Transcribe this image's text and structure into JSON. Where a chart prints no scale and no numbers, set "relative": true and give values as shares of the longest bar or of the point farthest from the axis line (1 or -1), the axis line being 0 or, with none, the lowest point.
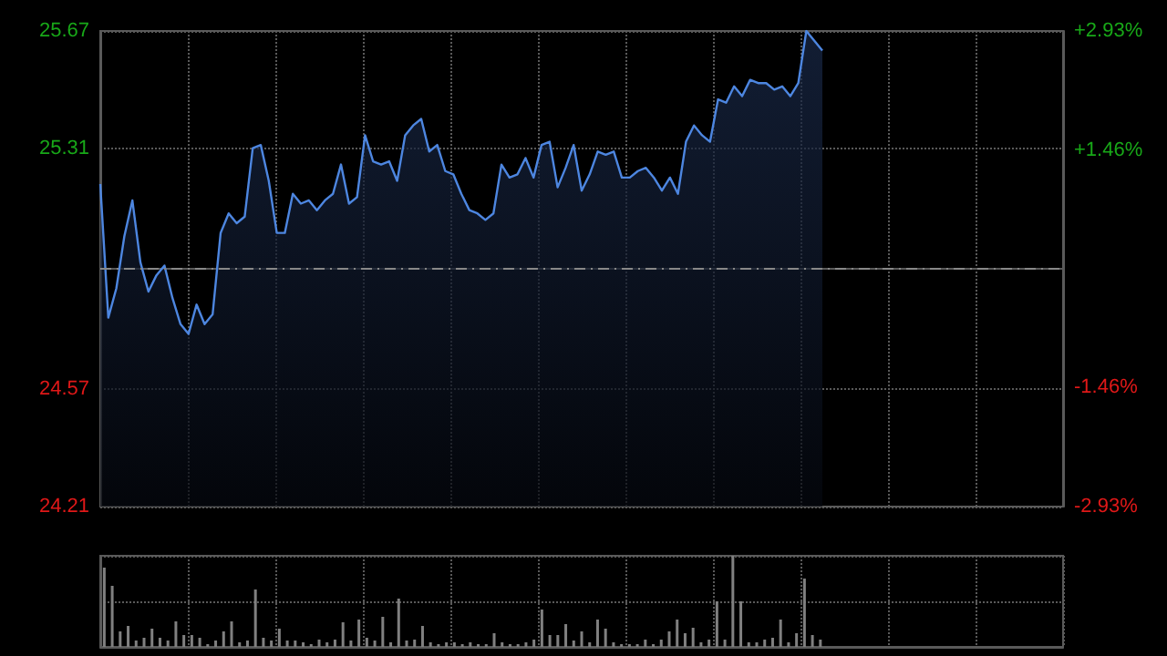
{
  "chart_data": [
    {
      "type": "area",
      "categories": [
        null,
        null,
        null,
        null,
        null,
        null,
        null,
        null,
        null,
        null,
        null,
        null,
        null,
        null,
        null,
        null,
        null,
        null,
        null,
        null,
        null,
        null,
        null,
        null,
        null,
        null,
        null,
        null,
        null,
        null,
        null,
        null,
        null,
        null,
        null,
        null,
        null,
        null,
        null,
        null,
        null,
        null,
        null,
        null,
        null,
        null,
        null,
        null,
        null,
        null,
        null,
        null,
        null,
        null,
        null,
        null,
        null,
        null,
        null,
        null,
        null,
        null,
        null,
        null,
        null,
        null,
        null,
        null,
        null,
        null,
        null,
        null,
        null,
        null,
        null,
        null,
        null,
        null,
        null,
        null,
        null,
        null,
        null,
        null,
        null,
        null,
        null,
        null,
        null,
        null,
        null
      ],
      "series": [
        {
          "color": "#4d86e0",
          "values": [
            25.2,
            24.79,
            24.88,
            25.04,
            25.15,
            24.96,
            24.87,
            24.92,
            24.95,
            24.85,
            24.77,
            24.74,
            24.83,
            24.77,
            24.8,
            25.05,
            25.11,
            25.08,
            25.1,
            25.31,
            25.32,
            25.21,
            25.05,
            25.05,
            25.17,
            25.14,
            25.15,
            25.12,
            25.15,
            25.17,
            25.26,
            25.14,
            25.16,
            25.35,
            25.27,
            25.26,
            25.27,
            25.21,
            25.35,
            25.38,
            25.4,
            25.3,
            25.32,
            25.24,
            25.23,
            25.17,
            25.12,
            25.11,
            25.09,
            25.11,
            25.26,
            25.22,
            25.23,
            25.28,
            25.22,
            25.32,
            25.33,
            25.19,
            25.25,
            25.32,
            25.18,
            25.23,
            25.3,
            25.29,
            25.3,
            25.22,
            25.22,
            25.24,
            25.25,
            25.22,
            25.18,
            25.22,
            25.17,
            25.33,
            25.38,
            25.35,
            25.33,
            25.46,
            25.45,
            25.5,
            25.47,
            25.52,
            25.51,
            25.51,
            25.49,
            25.5,
            25.47,
            25.51,
            25.67,
            25.64,
            25.61
          ]
        }
      ],
      "ylim": [
        24.21,
        25.67
      ],
      "yticks": [
        25.67,
        25.31,
        24.57,
        24.21
      ],
      "y2lim": [
        -2.93,
        2.93
      ],
      "y2ticks": [
        {
          "value": 2.93,
          "label": "+2.93%"
        },
        {
          "value": 1.46,
          "label": "+1.46%"
        },
        {
          "value": -1.46,
          "label": "-1.46%"
        },
        {
          "value": -2.93,
          "label": "-2.93%"
        }
      ],
      "ref_lines": [
        {
          "axis": "y",
          "value": 24.94,
          "color": "#888888",
          "line_style": "dashed"
        }
      ],
      "grid": true,
      "tick_labels": "y"
    },
    {
      "type": "bar",
      "relative": true,
      "grid": true,
      "categories": [
        null,
        null,
        null,
        null,
        null,
        null,
        null,
        null,
        null,
        null,
        null,
        null,
        null,
        null,
        null,
        null,
        null,
        null,
        null,
        null,
        null,
        null,
        null,
        null,
        null,
        null,
        null,
        null,
        null,
        null,
        null,
        null,
        null,
        null,
        null,
        null,
        null,
        null,
        null,
        null,
        null,
        null,
        null,
        null,
        null,
        null,
        null,
        null,
        null,
        null,
        null,
        null,
        null,
        null,
        null,
        null,
        null,
        null,
        null,
        null,
        null,
        null,
        null,
        null,
        null,
        null,
        null,
        null,
        null,
        null,
        null,
        null,
        null,
        null,
        null,
        null,
        null,
        null,
        null,
        null,
        null,
        null,
        null,
        null,
        null,
        null,
        null,
        null,
        null,
        null,
        null
      ],
      "series": [
        {
          "color": "#808080",
          "values": [
            0.87,
            0.67,
            0.17,
            0.23,
            0.07,
            0.1,
            0.2,
            0.1,
            0.07,
            0.28,
            0.13,
            0.13,
            0.1,
            0.03,
            0.07,
            0.17,
            0.28,
            0.05,
            0.07,
            0.63,
            0.1,
            0.07,
            0.2,
            0.07,
            0.07,
            0.05,
            0.03,
            0.08,
            0.05,
            0.08,
            0.27,
            0.07,
            0.3,
            0.1,
            0.07,
            0.33,
            0.05,
            0.53,
            0.07,
            0.08,
            0.23,
            0.05,
            0.03,
            0.05,
            0.05,
            0.03,
            0.05,
            0.03,
            0.03,
            0.15,
            0.05,
            0.03,
            0.03,
            0.05,
            0.08,
            0.41,
            0.13,
            0.13,
            0.25,
            0.07,
            0.17,
            0.05,
            0.3,
            0.2,
            0.05,
            0.03,
            0.03,
            0.03,
            0.08,
            0.03,
            0.08,
            0.17,
            0.3,
            0.15,
            0.21,
            0.05,
            0.08,
            0.5,
            0.08,
            1,
            0.5,
            0.05,
            0.05,
            0.08,
            0.1,
            0.3,
            0.05,
            0.15,
            0.75,
            0.13,
            0.08
          ]
        }
      ],
      "tick_labels": false
    }
  ]
}
